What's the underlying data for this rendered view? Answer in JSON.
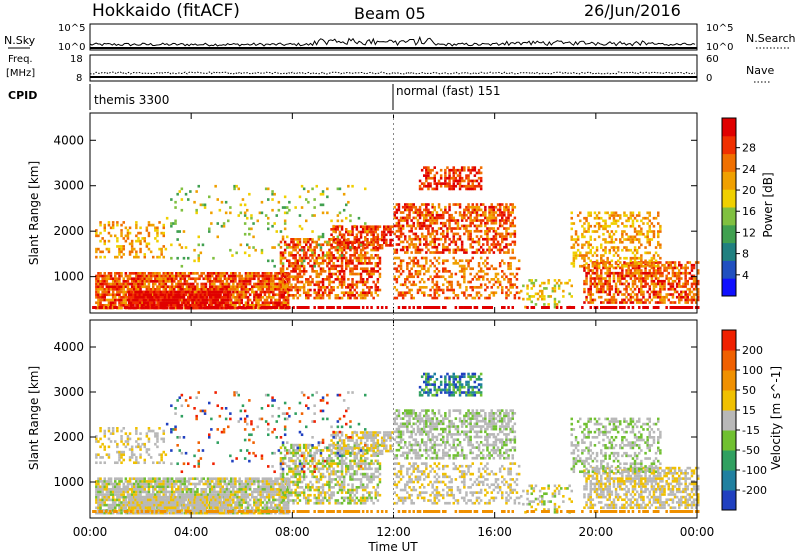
{
  "header": {
    "title": "Hokkaido (fitACF)",
    "beam": "Beam 05",
    "date": "26/Jun/2016"
  },
  "panels": {
    "nsky": {
      "left_label": "N.Sky",
      "right_label": "N.Search",
      "ticks_left": [
        "10^5",
        "10^0"
      ],
      "ticks_right": [
        "10^5",
        "10^0"
      ]
    },
    "freq": {
      "label_line1": "Freq.",
      "label_line2": "[MHz]",
      "ticks_left": [
        "18",
        "8"
      ],
      "ticks_right": [
        "60",
        "0"
      ],
      "right_label": "Nave"
    },
    "cpid": {
      "label": "CPID",
      "segments": [
        {
          "name": "themis 3300",
          "start_hour": 0
        },
        {
          "name": "normal (fast) 151",
          "start_hour": 12
        }
      ]
    }
  },
  "chart_data": [
    {
      "type": "heatmap",
      "parameter": "Power",
      "ylabel": "Slant Range [km]",
      "yticks": [
        "1000",
        "2000",
        "3000",
        "4000"
      ],
      "ylim": [
        200,
        4600
      ],
      "xlim": [
        0,
        24
      ],
      "colorbar": {
        "label": "Power [dB]",
        "ticks": [
          "4",
          "8",
          "12",
          "16",
          "20",
          "24",
          "28"
        ],
        "colors": [
          "#1010ff",
          "#2050c0",
          "#208080",
          "#40a050",
          "#80c040",
          "#f0d000",
          "#f0a000",
          "#f07000",
          "#f03000",
          "#e00000"
        ]
      }
    },
    {
      "type": "heatmap",
      "parameter": "Velocity",
      "ylabel": "Slant Range [km]",
      "yticks": [
        "1000",
        "2000",
        "3000",
        "4000"
      ],
      "ylim": [
        200,
        4600
      ],
      "xlim": [
        0,
        24
      ],
      "xlabel": "Time UT",
      "xticks": [
        "00:00",
        "04:00",
        "08:00",
        "12:00",
        "16:00",
        "20:00",
        "00:00"
      ],
      "colorbar": {
        "label": "Velocity [m s^-1]",
        "ticks": [
          "200",
          "100",
          "50",
          "15",
          "-15",
          "-50",
          "-100",
          "-200"
        ],
        "colors": [
          "#2040c0",
          "#2080a0",
          "#30a060",
          "#70c030",
          "#b8b8b8",
          "#f0c000",
          "#f09000",
          "#f06000",
          "#f02000"
        ]
      }
    }
  ]
}
